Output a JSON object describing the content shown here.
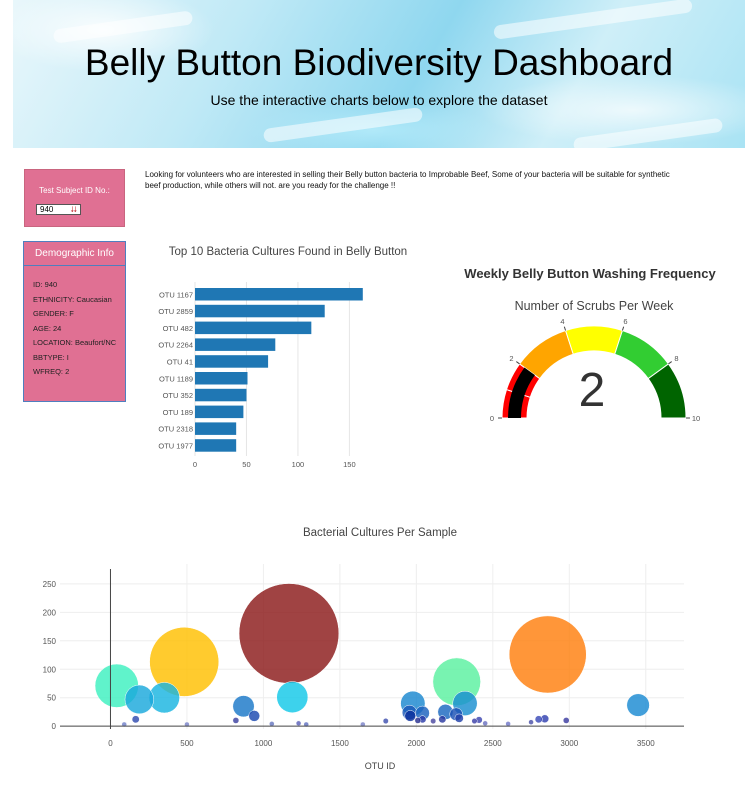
{
  "header": {
    "title": "Belly Button Biodiversity Dashboard",
    "subtitle": "Use the interactive charts below to explore the dataset"
  },
  "selector": {
    "label": "Test Subject ID No.:",
    "value": "940"
  },
  "intro_text": "Looking for volunteers who are interested in selling their Belly button bacteria to Improbable Beef, Some of your bacteria will be suitable for synthetic beef production, while others will not. are you ready for the challenge !!",
  "demographics": {
    "title": "Demographic Info",
    "rows": [
      "ID: 940",
      "ETHNICITY: Caucasian",
      "GENDER: F",
      "AGE: 24",
      "LOCATION: Beaufort/NC",
      "BBTYPE: I",
      "WFREQ: 2"
    ]
  },
  "chart_data": [
    {
      "type": "bar",
      "orientation": "horizontal",
      "title": "Top 10 Bacteria Cultures Found in Belly Button",
      "categories": [
        "OTU 1167",
        "OTU 2859",
        "OTU 482",
        "OTU 2264",
        "OTU 41",
        "OTU 1189",
        "OTU 352",
        "OTU 189",
        "OTU 2318",
        "OTU 1977"
      ],
      "values": [
        163,
        126,
        113,
        78,
        71,
        51,
        50,
        47,
        40,
        40
      ],
      "xlim": [
        0,
        170
      ],
      "xticks": [
        0,
        50,
        100,
        150
      ],
      "color": "#1f77b4",
      "grid": true
    },
    {
      "type": "gauge",
      "title": "Weekly Belly Button Washing Frequency",
      "subtitle": "Number of Scrubs Per Week",
      "value": 2,
      "range": [
        0,
        10
      ],
      "ticks": [
        0,
        2,
        4,
        6,
        8,
        10
      ],
      "steps": [
        {
          "range": [
            0,
            1
          ],
          "color": "#ff0000"
        },
        {
          "range": [
            1,
            2
          ],
          "color": "#ff0000"
        },
        {
          "range": [
            2,
            4
          ],
          "color": "#ffa500"
        },
        {
          "range": [
            4,
            6
          ],
          "color": "#ffff00"
        },
        {
          "range": [
            6,
            8
          ],
          "color": "#32cd32"
        },
        {
          "range": [
            8,
            10
          ],
          "color": "#006400"
        }
      ],
      "bar_color": "#000000"
    },
    {
      "type": "scatter",
      "mode": "bubble",
      "title": "Bacterial Cultures Per Sample",
      "xlabel": "OTU ID",
      "ylabel": "",
      "xlim": [
        -330,
        3750
      ],
      "ylim": [
        -5,
        285
      ],
      "xticks": [
        0,
        500,
        1000,
        1500,
        2000,
        2500,
        3000,
        3500
      ],
      "yticks": [
        0,
        50,
        100,
        150,
        200,
        250
      ],
      "grid": true,
      "points": [
        {
          "x": 1167,
          "y": 163,
          "color": "#8b1a1a"
        },
        {
          "x": 2859,
          "y": 126,
          "color": "#ff7f0e"
        },
        {
          "x": 482,
          "y": 113,
          "color": "#ffbf00"
        },
        {
          "x": 2264,
          "y": 78,
          "color": "#5af0a0"
        },
        {
          "x": 41,
          "y": 71,
          "color": "#3df0c0"
        },
        {
          "x": 1189,
          "y": 51,
          "color": "#12c8e8"
        },
        {
          "x": 352,
          "y": 50,
          "color": "#19b5e0"
        },
        {
          "x": 189,
          "y": 47,
          "color": "#1aa8dc"
        },
        {
          "x": 2318,
          "y": 40,
          "color": "#1a8fd0"
        },
        {
          "x": 1977,
          "y": 40,
          "color": "#1a88d0"
        },
        {
          "x": 3450,
          "y": 37,
          "color": "#1a8ad2"
        },
        {
          "x": 870,
          "y": 35,
          "color": "#1a78c8"
        },
        {
          "x": 2190,
          "y": 25,
          "color": "#1a68c0"
        },
        {
          "x": 2040,
          "y": 23,
          "color": "#1a60bd"
        },
        {
          "x": 1955,
          "y": 24,
          "color": "#1a58b8"
        },
        {
          "x": 2260,
          "y": 21,
          "color": "#1a50b4"
        },
        {
          "x": 940,
          "y": 18,
          "color": "#1a48b0"
        },
        {
          "x": 1960,
          "y": 18,
          "color": "#0b2f9c"
        },
        {
          "x": 2280,
          "y": 14,
          "color": "#2040a8"
        },
        {
          "x": 2170,
          "y": 12,
          "color": "#2a38a0"
        },
        {
          "x": 2040,
          "y": 12,
          "color": "#2a3aa8"
        },
        {
          "x": 2010,
          "y": 10,
          "color": "#283090"
        },
        {
          "x": 2800,
          "y": 12,
          "color": "#3a4ab8"
        },
        {
          "x": 2840,
          "y": 13,
          "color": "#3040b0"
        },
        {
          "x": 2980,
          "y": 10,
          "color": "#3a3aa0"
        },
        {
          "x": 2410,
          "y": 11,
          "color": "#3c44b0"
        },
        {
          "x": 2380,
          "y": 9,
          "color": "#3c40a8"
        },
        {
          "x": 165,
          "y": 12,
          "color": "#304ab0"
        },
        {
          "x": 820,
          "y": 10,
          "color": "#3a40a0"
        },
        {
          "x": 1800,
          "y": 9,
          "color": "#4050b0"
        },
        {
          "x": 2750,
          "y": 7,
          "color": "#4a50a8"
        },
        {
          "x": 2110,
          "y": 9,
          "color": "#4a48a0"
        },
        {
          "x": 1230,
          "y": 5,
          "color": "#5a60b8"
        },
        {
          "x": 1280,
          "y": 3,
          "color": "#6070c0"
        },
        {
          "x": 1055,
          "y": 4,
          "color": "#6878c0"
        },
        {
          "x": 2450,
          "y": 5,
          "color": "#6a70c0"
        },
        {
          "x": 2600,
          "y": 4,
          "color": "#7078c8"
        },
        {
          "x": 90,
          "y": 3,
          "color": "#7080c8"
        },
        {
          "x": 1650,
          "y": 3,
          "color": "#7a82c8"
        },
        {
          "x": 500,
          "y": 3,
          "color": "#7a84c8"
        }
      ]
    }
  ]
}
